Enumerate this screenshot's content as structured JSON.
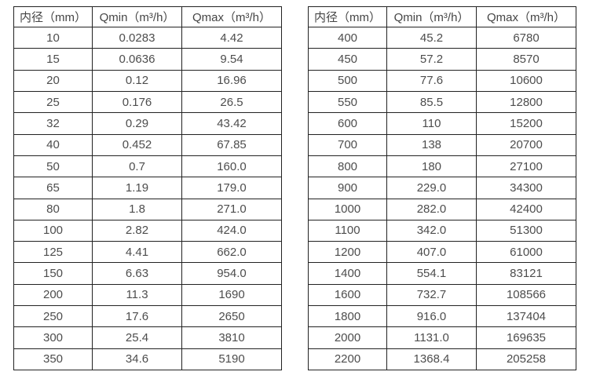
{
  "page": {
    "background": "#ffffff",
    "border_color": "#222222",
    "text_color": "#4d4d4d"
  },
  "tables": [
    {
      "name": "flow-spec-table-small-diameters",
      "headers": [
        "内径（mm）",
        "Qmin（m³/h）",
        "Qmax（m³/h）"
      ],
      "rows": [
        [
          "10",
          "0.0283",
          "4.42"
        ],
        [
          "15",
          "0.0636",
          "9.54"
        ],
        [
          "20",
          "0.12",
          "16.96"
        ],
        [
          "25",
          "0.176",
          "26.5"
        ],
        [
          "32",
          "0.29",
          "43.42"
        ],
        [
          "40",
          "0.452",
          "67.85"
        ],
        [
          "50",
          "0.7",
          "160.0"
        ],
        [
          "65",
          "1.19",
          "179.0"
        ],
        [
          "80",
          "1.8",
          "271.0"
        ],
        [
          "100",
          "2.82",
          "424.0"
        ],
        [
          "125",
          "4.41",
          "662.0"
        ],
        [
          "150",
          "6.63",
          "954.0"
        ],
        [
          "200",
          "11.3",
          "1690"
        ],
        [
          "250",
          "17.6",
          "2650"
        ],
        [
          "300",
          "25.4",
          "3810"
        ],
        [
          "350",
          "34.6",
          "5190"
        ]
      ]
    },
    {
      "name": "flow-spec-table-large-diameters",
      "headers": [
        "内径（mm）",
        "Qmin（m³/h）",
        "Qmax（m³/h）"
      ],
      "rows": [
        [
          "400",
          "45.2",
          "6780"
        ],
        [
          "450",
          "57.2",
          "8570"
        ],
        [
          "500",
          "77.6",
          "10600"
        ],
        [
          "550",
          "85.5",
          "12800"
        ],
        [
          "600",
          "110",
          "15200"
        ],
        [
          "700",
          "138",
          "20700"
        ],
        [
          "800",
          "180",
          "27100"
        ],
        [
          "900",
          "229.0",
          "34300"
        ],
        [
          "1000",
          "282.0",
          "42400"
        ],
        [
          "1100",
          "342.0",
          "51300"
        ],
        [
          "1200",
          "407.0",
          "61000"
        ],
        [
          "1400",
          "554.1",
          "83121"
        ],
        [
          "1600",
          "732.7",
          "108566"
        ],
        [
          "1800",
          "916.0",
          "137404"
        ],
        [
          "2000",
          "1131.0",
          "169635"
        ],
        [
          "2200",
          "1368.4",
          "205258"
        ]
      ]
    }
  ]
}
